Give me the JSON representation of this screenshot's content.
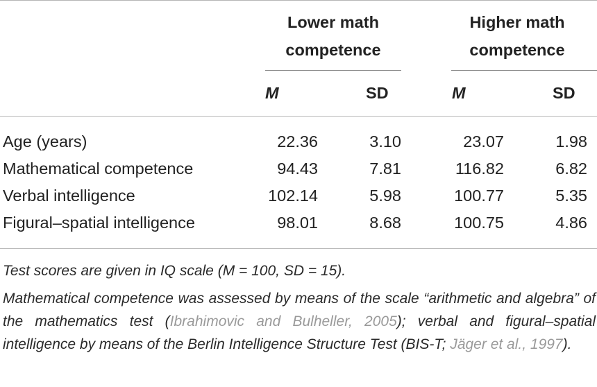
{
  "table": {
    "groups": [
      "Lower math competence",
      "Higher math competence"
    ],
    "group_lines": {
      "lower": [
        "Lower math",
        "competence"
      ],
      "higher": [
        "Higher math",
        "competence"
      ]
    },
    "subheaders": {
      "m": "M",
      "sd": "SD"
    },
    "rows": [
      {
        "label": "Age (years)",
        "low_m": "22.36",
        "low_sd": "3.10",
        "high_m": "23.07",
        "high_sd": "1.98"
      },
      {
        "label": "Mathematical competence",
        "low_m": "94.43",
        "low_sd": "7.81",
        "high_m": "116.82",
        "high_sd": "6.82"
      },
      {
        "label": "Verbal intelligence",
        "low_m": "102.14",
        "low_sd": "5.98",
        "high_m": "100.77",
        "high_sd": "5.35"
      },
      {
        "label": "Figural–spatial intelligence",
        "low_m": "98.01",
        "low_sd": "8.68",
        "high_m": "100.75",
        "high_sd": "4.86"
      }
    ]
  },
  "notes": {
    "note1": "Test scores are given in IQ scale (M = 100, SD = 15).",
    "note2_part1": "Mathematical competence was assessed by means of the scale “arithmetic and algebra” of the mathematics test (",
    "note2_cite1": "Ibrahimovic and Bulheller, 2005",
    "note2_part2": "); verbal and figural–spatial intelligence by means of the Berlin Intelligence Structure Test (BIS-T; ",
    "note2_cite2": "Jäger et al., 1997",
    "note2_part3": ")."
  }
}
